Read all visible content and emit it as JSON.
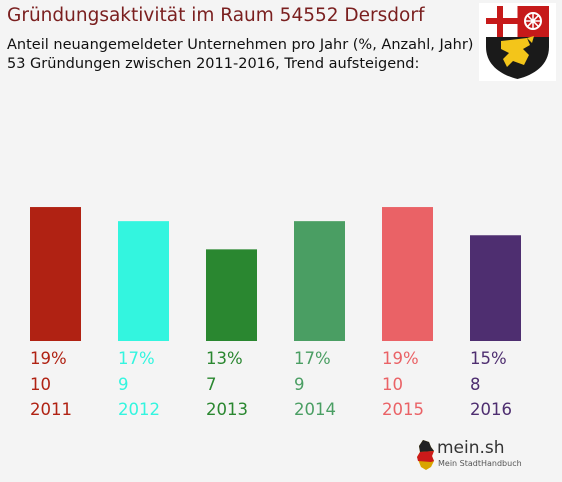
{
  "header": {
    "title": "Gründungsaktivität im Raum 54552 Dersdorf",
    "subtitle_line1": "Anteil neuangemeldeter Unternehmen pro Jahr (%, Anzahl, Jahr)",
    "subtitle_line2": "53 Gründungen zwischen 2011-2016, Trend aufsteigend:"
  },
  "crest": {
    "icon": "coat-of-arms-rhineland-palatinate"
  },
  "logo": {
    "brand": "mein.sh",
    "tagline": "Mein StadtHandbuch",
    "icon": "germany-map-icon"
  },
  "chart_data": {
    "type": "bar",
    "categories": [
      "2011",
      "2012",
      "2013",
      "2014",
      "2015",
      "2016"
    ],
    "series": [
      {
        "values": [
          19,
          17,
          13,
          17,
          19,
          15
        ]
      },
      {
        "values": [
          10,
          9,
          7,
          9,
          10,
          8
        ]
      }
    ],
    "percent_labels": [
      "19%",
      "17%",
      "13%",
      "17%",
      "19%",
      "15%"
    ],
    "count_labels": [
      "10",
      "9",
      "7",
      "9",
      "10",
      "8"
    ],
    "colors": [
      "#b02213",
      "#33f5df",
      "#2a8730",
      "#4a9e63",
      "#ea6266",
      "#4e2e70"
    ],
    "xlabel": "",
    "ylabel": "",
    "grid": false,
    "legend": false
  }
}
